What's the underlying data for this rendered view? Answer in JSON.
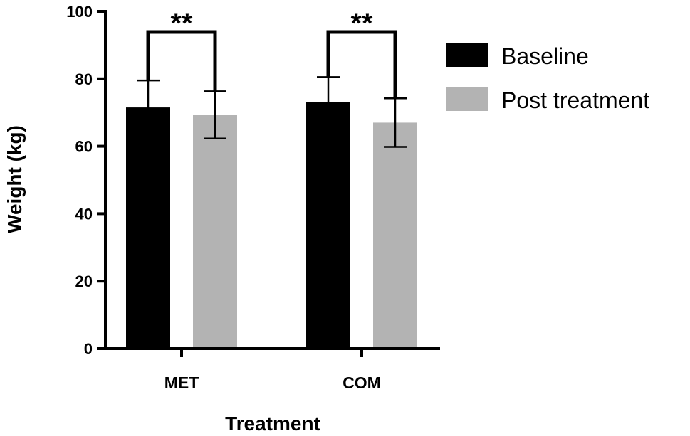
{
  "chart_data": {
    "type": "bar",
    "title": "",
    "xlabel": "Treatment",
    "ylabel": "Weight (kg)",
    "ylim": [
      0,
      100
    ],
    "yticks": [
      0,
      20,
      40,
      60,
      80,
      100
    ],
    "categories": [
      "MET",
      "COM"
    ],
    "series": [
      {
        "name": "Baseline",
        "color": "#000000",
        "values": [
          71.5,
          73.0
        ],
        "errors": [
          8.0,
          7.5
        ]
      },
      {
        "name": "Post treatment",
        "color": "#b3b3b3",
        "values": [
          69.3,
          67.0
        ],
        "errors": [
          7.0,
          7.2
        ]
      }
    ],
    "significance": [
      {
        "category": "MET",
        "label": "**"
      },
      {
        "category": "COM",
        "label": "**"
      }
    ],
    "legend_position": "top-right",
    "grid": false
  }
}
